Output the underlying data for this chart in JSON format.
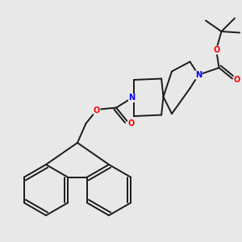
{
  "bg_color": "#e8e8e8",
  "bond_color": "#1a1a1a",
  "nitrogen_color": "#0000ee",
  "oxygen_color": "#ee0000",
  "lw": 1.4,
  "fig_size": [
    3.0,
    3.0
  ],
  "dpi": 100,
  "xlim": [
    0,
    10
  ],
  "ylim": [
    0,
    10
  ]
}
